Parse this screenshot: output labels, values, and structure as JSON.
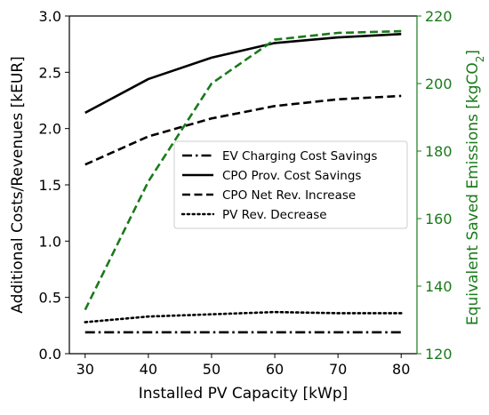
{
  "chart_data": {
    "type": "line",
    "x_axis": {
      "label": "Installed PV Capacity [kWp]",
      "range": [
        27.5,
        82.5
      ],
      "ticks": [
        "30",
        "40",
        "50",
        "60",
        "70",
        "80"
      ]
    },
    "y_axis_left": {
      "label": "Additional Costs/Revenues [kEUR]",
      "range": [
        0.0,
        3.0
      ],
      "ticks": [
        "0.0",
        "0.5",
        "1.0",
        "1.5",
        "2.0",
        "2.5",
        "3.0"
      ]
    },
    "y_axis_right": {
      "label": "Equivalent Saved Emissions [kgCO",
      "label_subscript": "2",
      "label_suffix": "]",
      "range": [
        120,
        220
      ],
      "ticks": [
        "120",
        "140",
        "160",
        "180",
        "200",
        "220"
      ],
      "color": "#1a7a1a"
    },
    "x": [
      30,
      40,
      50,
      60,
      70,
      80
    ],
    "series": [
      {
        "name": "EV Charging Cost Savings",
        "axis": "left",
        "style": "dashdot",
        "color": "#000000",
        "values": [
          0.19,
          0.19,
          0.19,
          0.19,
          0.19,
          0.19
        ]
      },
      {
        "name": "CPO Prov. Cost Savings",
        "axis": "left",
        "style": "solid",
        "color": "#000000",
        "values": [
          2.14,
          2.44,
          2.63,
          2.76,
          2.81,
          2.84
        ]
      },
      {
        "name": "CPO Net Rev. Increase",
        "axis": "left",
        "style": "dashed",
        "color": "#000000",
        "values": [
          1.68,
          1.93,
          2.09,
          2.2,
          2.26,
          2.29
        ]
      },
      {
        "name": "PV Rev. Decrease",
        "axis": "left",
        "style": "dotted",
        "color": "#000000",
        "values": [
          0.28,
          0.33,
          0.35,
          0.37,
          0.36,
          0.36
        ]
      },
      {
        "axis": "right",
        "style": "dashed",
        "color": "#1a7a1a",
        "values": [
          133,
          171,
          200,
          213,
          215,
          215.5
        ]
      }
    ],
    "legend": {
      "placement": "center-right",
      "entries": [
        "EV Charging Cost Savings",
        "CPO Prov. Cost Savings",
        "CPO Net Rev. Increase",
        "PV Rev. Decrease"
      ]
    },
    "grid": false
  }
}
